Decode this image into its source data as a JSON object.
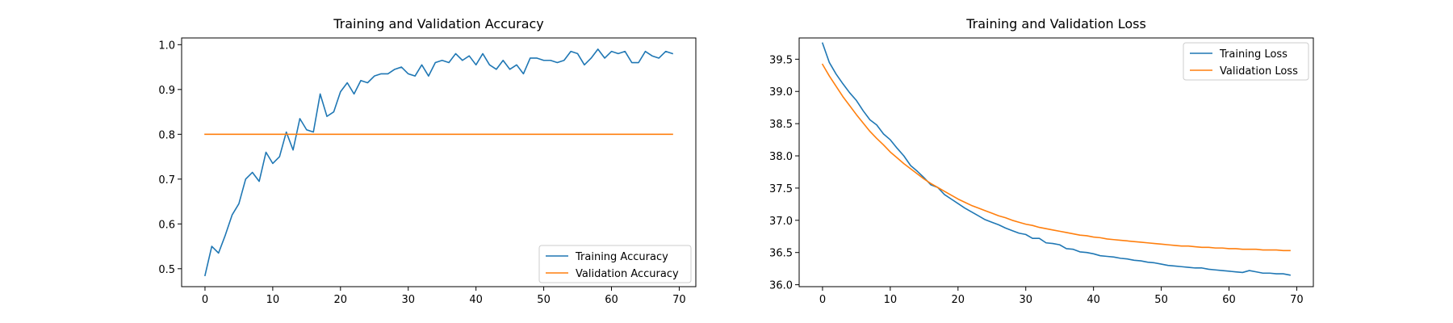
{
  "chart_data": [
    {
      "type": "line",
      "title": "Training and Validation Accuracy",
      "xlabel": "",
      "ylabel": "",
      "xlim": [
        -3.45,
        72.45
      ],
      "ylim": [
        0.46,
        1.015
      ],
      "xticks": [
        0,
        10,
        20,
        30,
        40,
        50,
        60,
        70
      ],
      "yticks": [
        0.5,
        0.6,
        0.7,
        0.8,
        0.9,
        1.0
      ],
      "ytick_labels": [
        "0.5",
        "0.6",
        "0.7",
        "0.8",
        "0.9",
        "1.0"
      ],
      "grid": false,
      "legend_position": "lower right",
      "x": [
        0,
        1,
        2,
        3,
        4,
        5,
        6,
        7,
        8,
        9,
        10,
        11,
        12,
        13,
        14,
        15,
        16,
        17,
        18,
        19,
        20,
        21,
        22,
        23,
        24,
        25,
        26,
        27,
        28,
        29,
        30,
        31,
        32,
        33,
        34,
        35,
        36,
        37,
        38,
        39,
        40,
        41,
        42,
        43,
        44,
        45,
        46,
        47,
        48,
        49,
        50,
        51,
        52,
        53,
        54,
        55,
        56,
        57,
        58,
        59,
        60,
        61,
        62,
        63,
        64,
        65,
        66,
        67,
        68,
        69
      ],
      "series": [
        {
          "name": "Training Accuracy",
          "color": "#1f77b4",
          "values": [
            0.485,
            0.55,
            0.535,
            0.575,
            0.62,
            0.645,
            0.7,
            0.715,
            0.695,
            0.76,
            0.735,
            0.75,
            0.805,
            0.765,
            0.835,
            0.81,
            0.805,
            0.89,
            0.84,
            0.85,
            0.895,
            0.915,
            0.89,
            0.92,
            0.915,
            0.93,
            0.935,
            0.935,
            0.945,
            0.95,
            0.935,
            0.93,
            0.955,
            0.93,
            0.96,
            0.965,
            0.96,
            0.98,
            0.965,
            0.975,
            0.955,
            0.98,
            0.955,
            0.945,
            0.965,
            0.945,
            0.955,
            0.935,
            0.97,
            0.97,
            0.965,
            0.965,
            0.96,
            0.965,
            0.985,
            0.98,
            0.955,
            0.97,
            0.99,
            0.97,
            0.985,
            0.98,
            0.985,
            0.96,
            0.96,
            0.985,
            0.975,
            0.97,
            0.985,
            0.98
          ]
        },
        {
          "name": "Validation Accuracy",
          "color": "#ff7f0e",
          "values": [
            0.8,
            0.8,
            0.8,
            0.8,
            0.8,
            0.8,
            0.8,
            0.8,
            0.8,
            0.8,
            0.8,
            0.8,
            0.8,
            0.8,
            0.8,
            0.8,
            0.8,
            0.8,
            0.8,
            0.8,
            0.8,
            0.8,
            0.8,
            0.8,
            0.8,
            0.8,
            0.8,
            0.8,
            0.8,
            0.8,
            0.8,
            0.8,
            0.8,
            0.8,
            0.8,
            0.8,
            0.8,
            0.8,
            0.8,
            0.8,
            0.8,
            0.8,
            0.8,
            0.8,
            0.8,
            0.8,
            0.8,
            0.8,
            0.8,
            0.8,
            0.8,
            0.8,
            0.8,
            0.8,
            0.8,
            0.8,
            0.8,
            0.8,
            0.8,
            0.8,
            0.8,
            0.8,
            0.8,
            0.8,
            0.8,
            0.8,
            0.8,
            0.8,
            0.8,
            0.8
          ]
        }
      ]
    },
    {
      "type": "line",
      "title": "Training and Validation Loss",
      "xlabel": "",
      "ylabel": "",
      "xlim": [
        -3.45,
        72.45
      ],
      "ylim": [
        35.97,
        39.83
      ],
      "xticks": [
        0,
        10,
        20,
        30,
        40,
        50,
        60,
        70
      ],
      "yticks": [
        36.0,
        36.5,
        37.0,
        37.5,
        38.0,
        38.5,
        39.0,
        39.5
      ],
      "ytick_labels": [
        "36.0",
        "36.5",
        "37.0",
        "37.5",
        "38.0",
        "38.5",
        "39.0",
        "39.5"
      ],
      "grid": false,
      "legend_position": "upper right",
      "x": [
        0,
        1,
        2,
        3,
        4,
        5,
        6,
        7,
        8,
        9,
        10,
        11,
        12,
        13,
        14,
        15,
        16,
        17,
        18,
        19,
        20,
        21,
        22,
        23,
        24,
        25,
        26,
        27,
        28,
        29,
        30,
        31,
        32,
        33,
        34,
        35,
        36,
        37,
        38,
        39,
        40,
        41,
        42,
        43,
        44,
        45,
        46,
        47,
        48,
        49,
        50,
        51,
        52,
        53,
        54,
        55,
        56,
        57,
        58,
        59,
        60,
        61,
        62,
        63,
        64,
        65,
        66,
        67,
        68,
        69
      ],
      "series": [
        {
          "name": "Training Loss",
          "color": "#1f77b4",
          "values": [
            39.75,
            39.45,
            39.27,
            39.12,
            38.98,
            38.86,
            38.7,
            38.56,
            38.48,
            38.34,
            38.25,
            38.12,
            38.0,
            37.85,
            37.76,
            37.66,
            37.55,
            37.51,
            37.4,
            37.33,
            37.26,
            37.19,
            37.13,
            37.07,
            37.01,
            36.97,
            36.93,
            36.88,
            36.84,
            36.8,
            36.78,
            36.72,
            36.72,
            36.65,
            36.64,
            36.62,
            36.56,
            36.55,
            36.51,
            36.5,
            36.48,
            36.45,
            36.44,
            36.43,
            36.41,
            36.4,
            36.38,
            36.37,
            36.35,
            36.34,
            36.32,
            36.3,
            36.29,
            36.28,
            36.27,
            36.26,
            36.26,
            36.24,
            36.23,
            36.22,
            36.21,
            36.2,
            36.19,
            36.22,
            36.2,
            36.18,
            36.18,
            36.17,
            36.17,
            36.15
          ]
        },
        {
          "name": "Validation Loss",
          "color": "#ff7f0e",
          "values": [
            39.42,
            39.24,
            39.08,
            38.92,
            38.78,
            38.64,
            38.51,
            38.38,
            38.27,
            38.17,
            38.06,
            37.97,
            37.88,
            37.8,
            37.72,
            37.64,
            37.57,
            37.51,
            37.45,
            37.39,
            37.33,
            37.28,
            37.23,
            37.19,
            37.15,
            37.11,
            37.07,
            37.04,
            37.0,
            36.97,
            36.94,
            36.92,
            36.89,
            36.87,
            36.85,
            36.83,
            36.81,
            36.79,
            36.77,
            36.76,
            36.74,
            36.73,
            36.71,
            36.7,
            36.69,
            36.68,
            36.67,
            36.66,
            36.65,
            36.64,
            36.63,
            36.62,
            36.61,
            36.6,
            36.6,
            36.59,
            36.58,
            36.58,
            36.57,
            36.57,
            36.56,
            36.56,
            36.55,
            36.55,
            36.55,
            36.54,
            36.54,
            36.54,
            36.53,
            36.53
          ]
        }
      ]
    }
  ]
}
